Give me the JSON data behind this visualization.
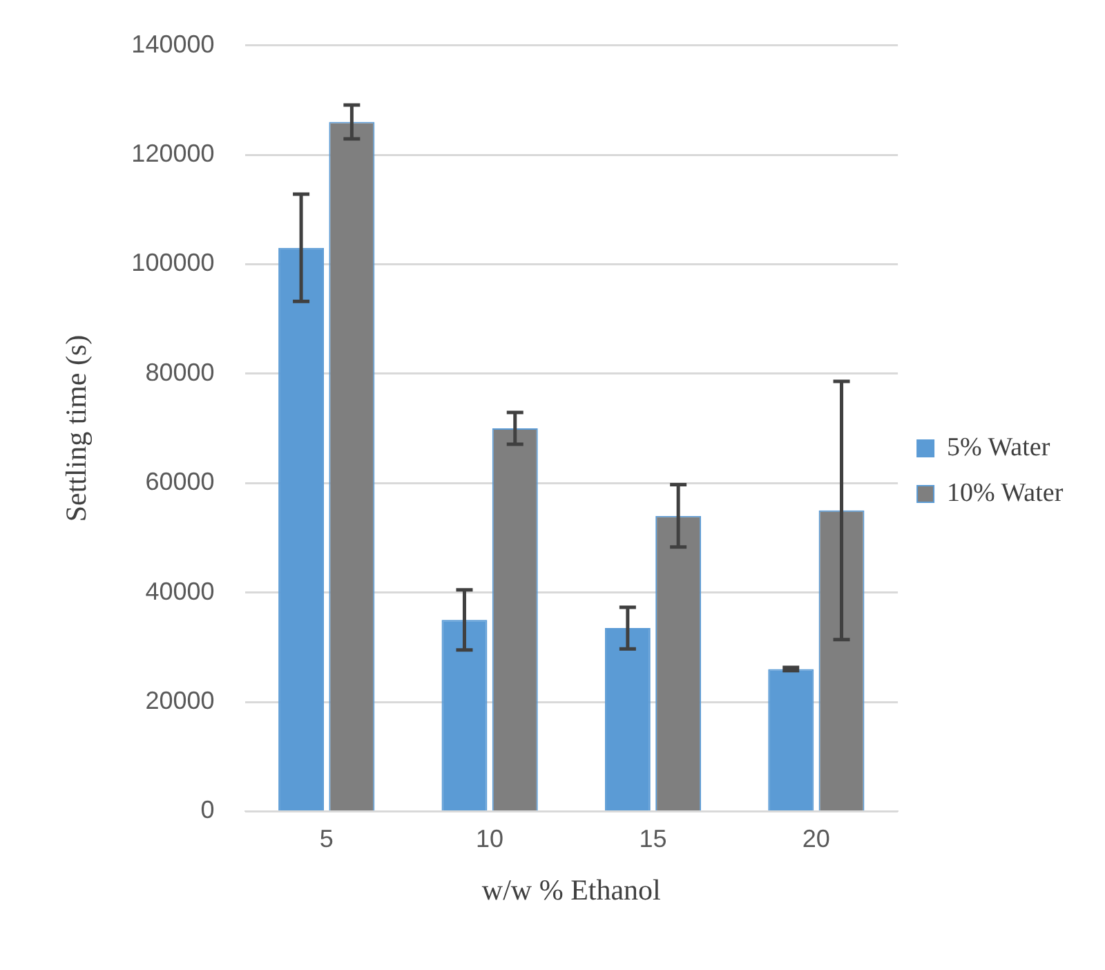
{
  "chart_data": {
    "type": "bar",
    "xlabel": "w/w % Ethanol",
    "ylabel": "Settling time (s)",
    "categories": [
      "5",
      "10",
      "15",
      "20"
    ],
    "series": [
      {
        "name": "5% Water",
        "color": "#5b9bd5",
        "values": [
          103000,
          35000,
          33500,
          26000
        ],
        "errors": [
          9800,
          5500,
          3800,
          300
        ]
      },
      {
        "name": "10% Water",
        "color": "#7f7f7f",
        "values": [
          126000,
          70000,
          54000,
          55000
        ],
        "errors": [
          3100,
          2900,
          5700,
          23600
        ]
      }
    ],
    "ylim": [
      0,
      140000
    ],
    "yticks": [
      0,
      20000,
      40000,
      60000,
      80000,
      100000,
      120000,
      140000
    ],
    "grid": "y",
    "legend": "right"
  }
}
